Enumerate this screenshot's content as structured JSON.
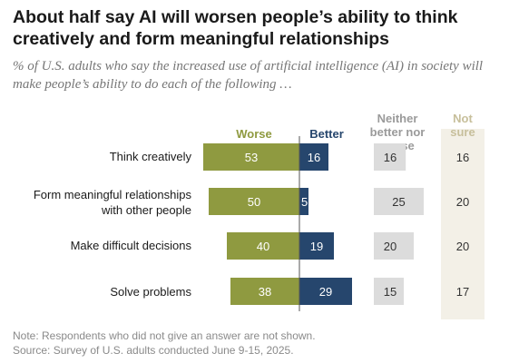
{
  "header": {
    "title": "About half say AI will worsen people’s ability to think creatively and form meaningful relationships",
    "subtitle": "% of U.S. adults who say the increased use of artificial intelligence (AI) in society will make people’s ability to do each of the following …"
  },
  "colors": {
    "worse": "#8f9a40",
    "better": "#26466d",
    "neither_bg": "#dcdcdc",
    "not_sure_bg": "#f3f0e7",
    "not_sure_header": "#c7bf9b",
    "neither_header": "#9a9a9a"
  },
  "chart_data": {
    "type": "bar",
    "title": "About half say AI will worsen people’s ability to think creatively and form meaningful relationships",
    "subtitle": "% of U.S. adults who say the increased use of artificial intelligence (AI) in society will make people’s ability to do each of the following …",
    "categories": [
      "Think creatively",
      "Form meaningful relationships with other people",
      "Make difficult decisions",
      "Solve problems"
    ],
    "series": [
      {
        "name": "Worse",
        "values": [
          53,
          50,
          40,
          38
        ]
      },
      {
        "name": "Better",
        "values": [
          16,
          5,
          19,
          29
        ]
      },
      {
        "name": "Neither better nor worse",
        "values": [
          16,
          25,
          20,
          15
        ]
      },
      {
        "name": "Not sure",
        "values": [
          16,
          20,
          20,
          17
        ]
      }
    ],
    "layout": "diverging bars around center axis, Worse to the left, Better to the right; Neither and Not sure shown as separate value columns"
  },
  "footer": {
    "note": "Note: Respondents who did not give an answer are not shown.",
    "source": "Source: Survey of U.S. adults conducted June 9-15, 2025."
  }
}
